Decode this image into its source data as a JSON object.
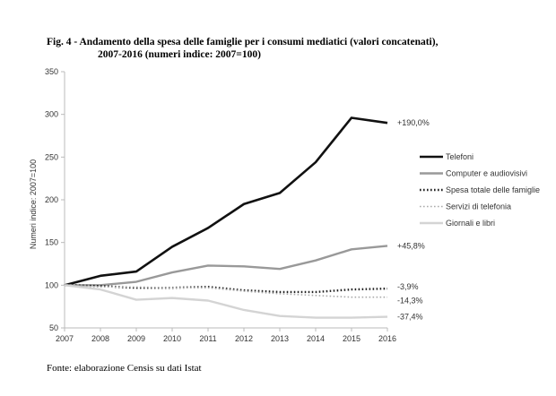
{
  "figure": {
    "label": "Fig. 4 -",
    "title_line1": "Andamento della spesa delle famiglie per i consumi mediatici (valori concatenati),",
    "title_line2": "2007-2016 (numeri indice: 2007=100)",
    "source": "Fonte: elaborazione Censis su dati Istat"
  },
  "chart_data": {
    "type": "line",
    "title": "Andamento della spesa delle famiglie per i consumi mediatici (valori concatenati), 2007-2016 (numeri indice: 2007=100)",
    "xlabel": "",
    "ylabel": "Numeri indice: 2007=100",
    "x": [
      "2007",
      "2008",
      "2009",
      "2010",
      "2011",
      "2012",
      "2013",
      "2014",
      "2015",
      "2016"
    ],
    "ylim": [
      50,
      350
    ],
    "yticks": [
      "50",
      "100",
      "150",
      "200",
      "250",
      "300",
      "350"
    ],
    "grid": false,
    "legend_position": "right",
    "series": [
      {
        "name": "Telefoni",
        "color": "#111111",
        "style": "solid",
        "width": 2.6,
        "end_label": "+190,0%",
        "values": [
          100,
          111,
          116,
          145,
          167,
          195,
          208,
          244,
          296,
          290
        ]
      },
      {
        "name": "Computer e audiovisivi",
        "color": "#999999",
        "style": "solid",
        "width": 2.4,
        "end_label": "+45,8%",
        "values": [
          100,
          100,
          104,
          115,
          123,
          122,
          119,
          129,
          142,
          146
        ]
      },
      {
        "name": "Spesa totale delle famiglie",
        "color": "#222222",
        "style": "dotted",
        "width": 2.4,
        "end_label": "-3,9%",
        "values": [
          100,
          99,
          97,
          97,
          98,
          94,
          92,
          92,
          95,
          96
        ]
      },
      {
        "name": "Servizi di telefonia",
        "color": "#aaaaaa",
        "style": "dotted",
        "width": 1.6,
        "end_label": "-14,3%",
        "values": [
          100,
          98,
          98,
          97,
          97,
          93,
          90,
          88,
          86,
          86
        ]
      },
      {
        "name": "Giornali e libri",
        "color": "#d4d4d4",
        "style": "solid",
        "width": 2.4,
        "end_label": "-37,4%",
        "values": [
          100,
          95,
          83,
          85,
          82,
          71,
          64,
          62,
          62,
          63
        ]
      }
    ]
  }
}
